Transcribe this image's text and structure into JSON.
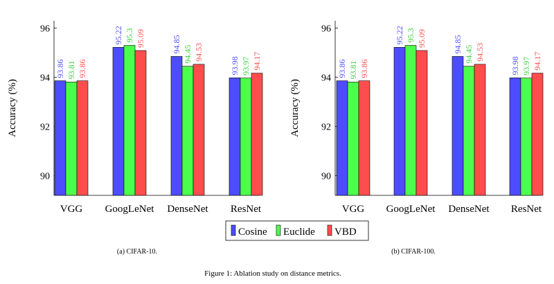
{
  "colors": {
    "Cosine": "#4d4dff",
    "Euclide": "#4dff4d",
    "VBD": "#ff4d4d",
    "Cosine_label": "#4d4dff",
    "Euclide_label": "#3ccf3c",
    "VBD_label": "#ff4d4d",
    "axis": "#000000"
  },
  "figure_caption": "Figure 1: Ablation study on distance metrics.",
  "legend": [
    "Cosine",
    "Euclide",
    "VBD"
  ],
  "chart_data": [
    {
      "type": "bar",
      "id": "cifar10",
      "caption": "(a) CIFAR-10.",
      "title": "",
      "xlabel": "",
      "ylabel": "Accuracy (%)",
      "ylim": [
        89.2,
        96.3
      ],
      "yticks": [
        "90",
        "92",
        "94",
        "96"
      ],
      "categories": [
        "VGG",
        "GoogLeNet",
        "DenseNet",
        "ResNet"
      ],
      "series": [
        {
          "name": "Cosine",
          "values": [
            93.86,
            95.22,
            94.85,
            93.98
          ],
          "labels": [
            "93.86",
            "95.22",
            "94.85",
            "93.98"
          ]
        },
        {
          "name": "Euclide",
          "values": [
            93.81,
            95.3,
            94.45,
            93.97
          ],
          "labels": [
            "93.81",
            "95.3",
            "94.45",
            "93.97"
          ]
        },
        {
          "name": "VBD",
          "values": [
            93.86,
            95.09,
            94.53,
            94.17
          ],
          "labels": [
            "93.86",
            "95.09",
            "94.53",
            "94.17"
          ]
        }
      ]
    },
    {
      "type": "bar",
      "id": "cifar100",
      "caption": "(b) CIFAR-100.",
      "title": "",
      "xlabel": "",
      "ylabel": "Accuracy (%)",
      "ylim": [
        89.2,
        96.3
      ],
      "yticks": [
        "90",
        "92",
        "94",
        "96"
      ],
      "categories": [
        "VGG",
        "GoogLeNet",
        "DenseNet",
        "ResNet"
      ],
      "series": [
        {
          "name": "Cosine",
          "values": [
            93.86,
            95.22,
            94.85,
            93.98
          ],
          "labels": [
            "93.86",
            "95.22",
            "94.85",
            "93.98"
          ]
        },
        {
          "name": "Euclide",
          "values": [
            93.81,
            95.3,
            94.45,
            93.97
          ],
          "labels": [
            "93.81",
            "95.3",
            "94.45",
            "93.97"
          ]
        },
        {
          "name": "VBD",
          "values": [
            93.86,
            95.09,
            94.53,
            94.17
          ],
          "labels": [
            "93.86",
            "95.09",
            "94.53",
            "94.17"
          ]
        }
      ]
    }
  ]
}
